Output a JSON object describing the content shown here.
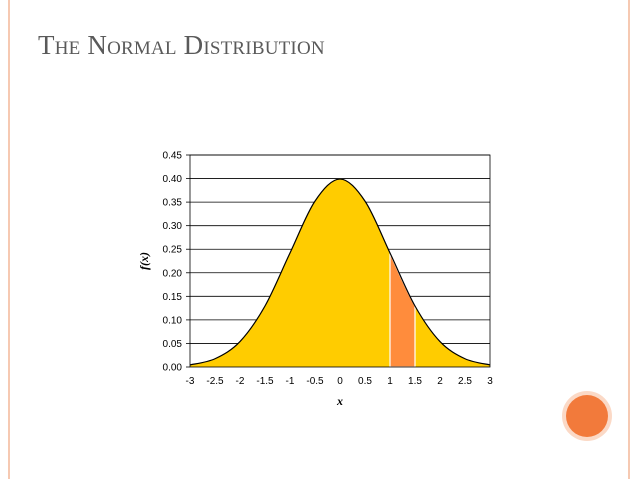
{
  "slide": {
    "title": "The Normal Distribution"
  },
  "colors": {
    "frame": "#f6c9b2",
    "curve_fill": "#ffcc00",
    "highlight_fill": "#ff8c3c",
    "accent_dot": "#f27a3b"
  },
  "chart_data": {
    "type": "area",
    "title": "",
    "xlabel": "x",
    "ylabel": "f(x)",
    "xlim": [
      -3,
      3
    ],
    "ylim": [
      0,
      0.45
    ],
    "grid": true,
    "x_ticks": [
      "-3",
      "-2.5",
      "-2",
      "-1.5",
      "-1",
      "-0.5",
      "0",
      "0.5",
      "1",
      "1.5",
      "2",
      "2.5",
      "3"
    ],
    "y_ticks": [
      "0.00",
      "0.05",
      "0.10",
      "0.15",
      "0.20",
      "0.25",
      "0.30",
      "0.35",
      "0.40",
      "0.45"
    ],
    "series": [
      {
        "x": [
          -3,
          -2.5,
          -2,
          -1.5,
          -1,
          -0.5,
          0,
          0.5,
          1,
          1.5,
          2,
          2.5,
          3
        ],
        "values": [
          0.0044,
          0.0175,
          0.054,
          0.1295,
          0.242,
          0.3521,
          0.3989,
          0.3521,
          0.242,
          0.1295,
          0.054,
          0.0175,
          0.0044
        ]
      }
    ],
    "shaded_region": {
      "from": 1,
      "to": 1.5
    }
  }
}
